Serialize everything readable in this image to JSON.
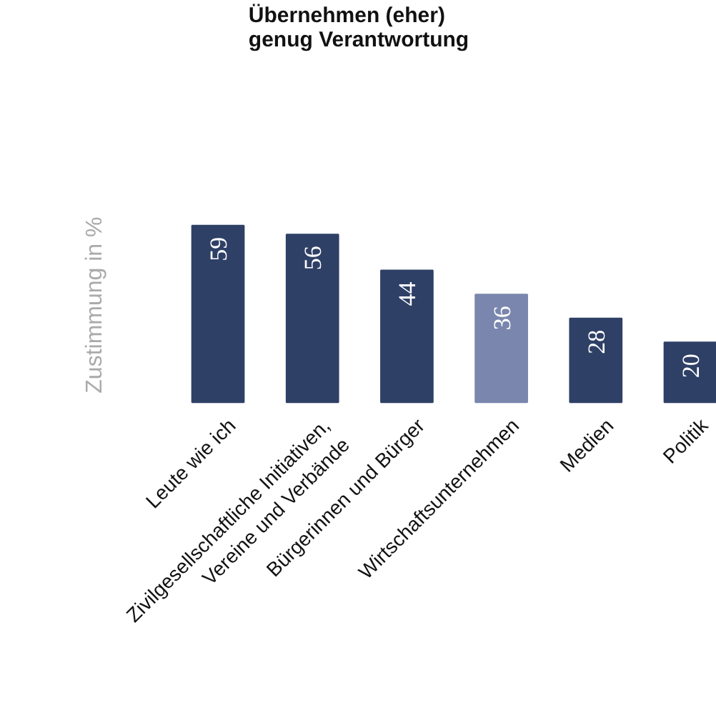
{
  "chart_data": {
    "type": "bar",
    "title": "Übernehmen (eher)\ngenug Verantwortung",
    "ylabel": "Zustimmung in %",
    "categories": [
      "Leute wie ich",
      "Zivilgesellschaftliche Initiativen,\nVereine und Verbände",
      "Bürgerinnen und Bürger",
      "Wirtschaftsunternehmen",
      "Medien",
      "Politik"
    ],
    "values": [
      59,
      56,
      44,
      36,
      28,
      20
    ],
    "colors": [
      "#2f4066",
      "#2f4066",
      "#2f4066",
      "#7a86ad",
      "#2f4066",
      "#2f4066"
    ],
    "data_labels": true
  }
}
